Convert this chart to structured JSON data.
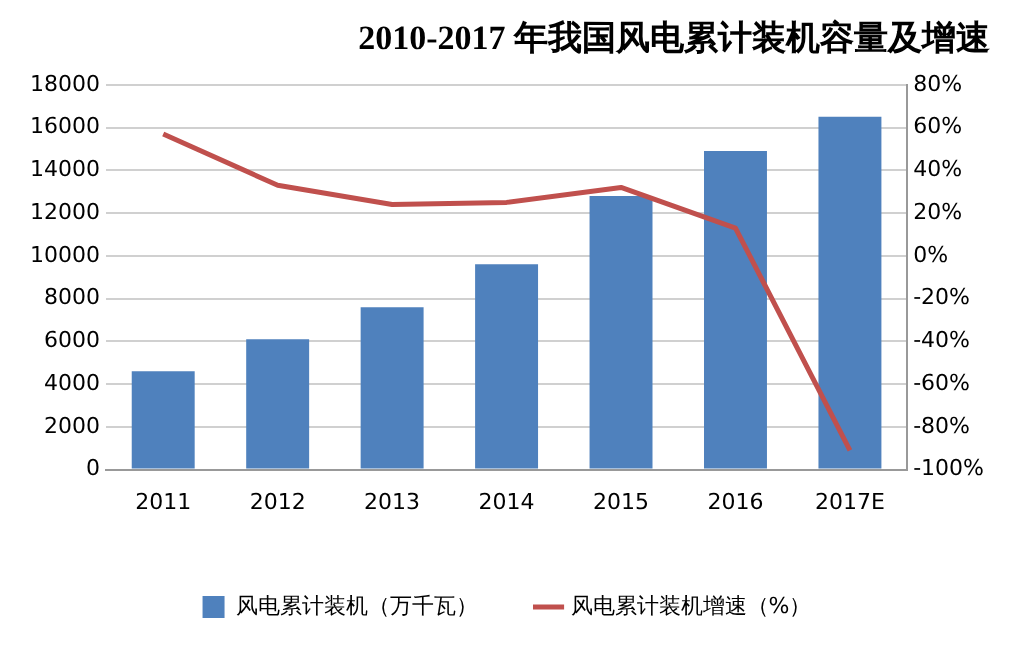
{
  "chart_data": {
    "type": "bar",
    "title": "2010-2017 年我国风电累计装机容量及增速",
    "categories": [
      "2011",
      "2012",
      "2013",
      "2014",
      "2015",
      "2016",
      "2017E"
    ],
    "series": [
      {
        "name": "风电累计装机（万千瓦）",
        "color": "#4f81bd",
        "values": [
          4600,
          6100,
          7600,
          9600,
          12800,
          14900,
          16500
        ]
      },
      {
        "name": "风电累计装机增速（%）",
        "type": "line",
        "axis": "y2",
        "color": "#c0504d",
        "values": [
          57,
          33,
          24,
          25,
          32,
          13,
          -91
        ]
      }
    ],
    "ylim": [
      0,
      18000
    ],
    "yticks": [
      0,
      2000,
      4000,
      6000,
      8000,
      10000,
      12000,
      14000,
      16000,
      18000
    ],
    "y2lim": [
      -100,
      80
    ],
    "y2ticks": [
      {
        "value": 80,
        "label": "80%"
      },
      {
        "value": 60,
        "label": "60%"
      },
      {
        "value": 40,
        "label": "40%"
      },
      {
        "value": 20,
        "label": "20%"
      },
      {
        "value": 0,
        "label": "0%"
      },
      {
        "value": -20,
        "label": "-20%"
      },
      {
        "value": -40,
        "label": "-40%"
      },
      {
        "value": -60,
        "label": "-60%"
      },
      {
        "value": -80,
        "label": "-80%"
      },
      {
        "value": -100,
        "label": "-100%"
      }
    ],
    "grid": "y",
    "legend": "bottom",
    "marker": "none",
    "line_style": "solid"
  }
}
